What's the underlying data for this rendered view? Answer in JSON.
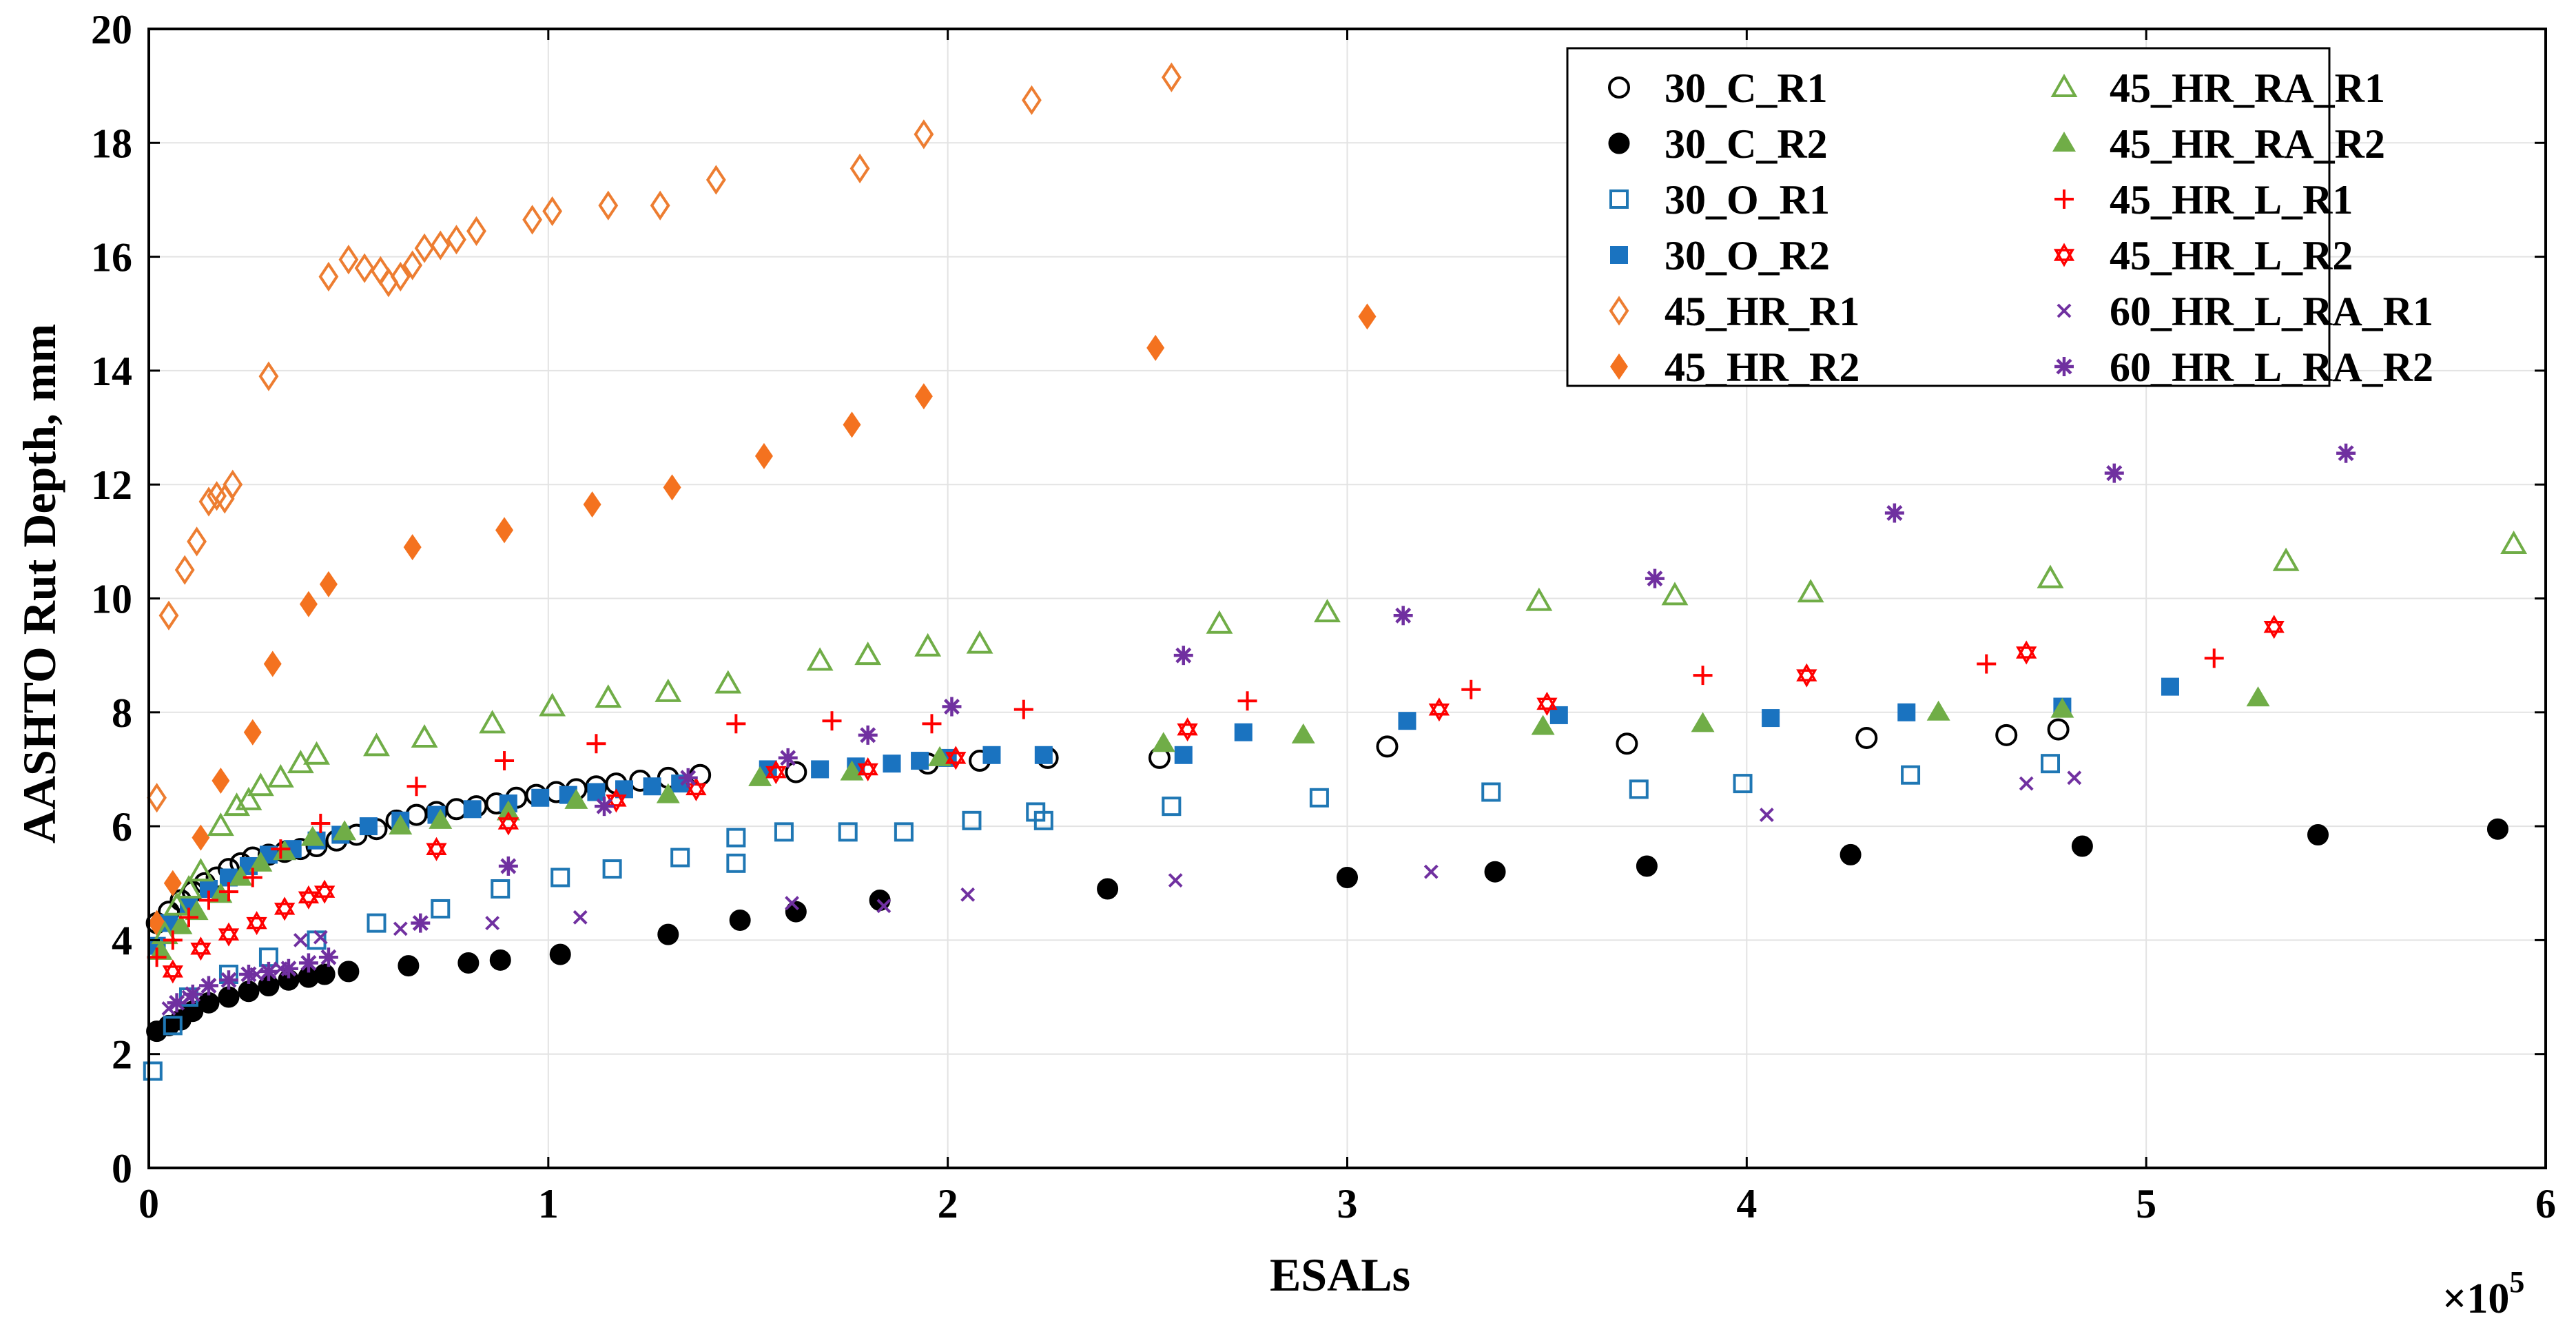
{
  "chart_data": {
    "type": "scatter",
    "title": "",
    "xlabel": "ESALs",
    "ylabel": "AASHTO Rut Depth, mm",
    "x_multiplier_label": "×10",
    "x_multiplier_exponent": "5",
    "xlim": [
      0,
      6
    ],
    "ylim": [
      0,
      20
    ],
    "xticks": [
      0,
      1,
      2,
      3,
      4,
      5,
      6
    ],
    "yticks": [
      0,
      2,
      4,
      6,
      8,
      10,
      12,
      14,
      16,
      18,
      20
    ],
    "xtick_labels": [
      "0",
      "1",
      "2",
      "3",
      "4",
      "5",
      "6"
    ],
    "ytick_labels": [
      "0",
      "2",
      "4",
      "6",
      "8",
      "10",
      "12",
      "14",
      "16",
      "18",
      "20"
    ],
    "grid": true,
    "legend_position": "top-right",
    "series": [
      {
        "name": "30_C_R1",
        "marker": "circle-open",
        "color": "#000000",
        "x": [
          0.02,
          0.05,
          0.08,
          0.11,
          0.14,
          0.17,
          0.2,
          0.23,
          0.26,
          0.3,
          0.34,
          0.38,
          0.42,
          0.47,
          0.52,
          0.57,
          0.62,
          0.67,
          0.72,
          0.77,
          0.82,
          0.87,
          0.92,
          0.97,
          1.02,
          1.07,
          1.12,
          1.17,
          1.23,
          1.3,
          1.38,
          1.62,
          1.95,
          2.08,
          2.25,
          2.53,
          3.1,
          3.7,
          4.3,
          4.65,
          4.78
        ],
        "y": [
          4.3,
          4.5,
          4.7,
          4.85,
          5.0,
          5.1,
          5.25,
          5.35,
          5.45,
          5.5,
          5.55,
          5.6,
          5.65,
          5.75,
          5.85,
          5.95,
          6.1,
          6.2,
          6.25,
          6.3,
          6.35,
          6.4,
          6.5,
          6.55,
          6.6,
          6.65,
          6.7,
          6.75,
          6.8,
          6.85,
          6.9,
          6.95,
          7.1,
          7.15,
          7.2,
          7.2,
          7.4,
          7.45,
          7.55,
          7.6,
          7.7
        ]
      },
      {
        "name": "30_C_R2",
        "marker": "circle-filled",
        "color": "#000000",
        "x": [
          0.02,
          0.05,
          0.08,
          0.11,
          0.15,
          0.2,
          0.25,
          0.3,
          0.35,
          0.4,
          0.44,
          0.5,
          0.65,
          0.8,
          0.88,
          1.03,
          1.3,
          1.48,
          1.62,
          1.83,
          2.4,
          3.0,
          3.37,
          3.75,
          4.26,
          4.84,
          5.43,
          5.88
        ],
        "y": [
          2.4,
          2.5,
          2.6,
          2.75,
          2.9,
          3.0,
          3.1,
          3.2,
          3.3,
          3.35,
          3.4,
          3.45,
          3.55,
          3.6,
          3.65,
          3.75,
          4.1,
          4.35,
          4.5,
          4.7,
          4.9,
          5.1,
          5.2,
          5.3,
          5.5,
          5.65,
          5.85,
          5.95
        ]
      },
      {
        "name": "30_O_R1",
        "marker": "square-open",
        "color": "#1f77b4",
        "x": [
          0.01,
          0.06,
          0.1,
          0.2,
          0.3,
          0.42,
          0.57,
          0.73,
          0.88,
          1.03,
          1.16,
          1.33,
          1.47,
          1.47,
          1.59,
          1.75,
          1.89,
          2.06,
          2.22,
          2.24,
          2.56,
          2.93,
          3.36,
          3.73,
          3.99,
          4.41,
          4.76
        ],
        "y": [
          1.7,
          2.5,
          3.0,
          3.4,
          3.7,
          4.0,
          4.3,
          4.55,
          4.9,
          5.1,
          5.25,
          5.45,
          5.8,
          5.35,
          5.9,
          5.9,
          5.9,
          6.1,
          6.25,
          6.1,
          6.35,
          6.5,
          6.6,
          6.65,
          6.75,
          6.9,
          7.1
        ]
      },
      {
        "name": "30_O_R2",
        "marker": "square-filled",
        "color": "#1a73c0",
        "x": [
          0.02,
          0.05,
          0.1,
          0.15,
          0.2,
          0.25,
          0.3,
          0.36,
          0.42,
          0.48,
          0.55,
          0.63,
          0.72,
          0.81,
          0.9,
          0.98,
          1.05,
          1.12,
          1.19,
          1.26,
          1.33,
          1.55,
          1.68,
          1.77,
          1.86,
          1.93,
          2.0,
          2.11,
          2.24,
          2.59,
          2.74,
          3.15,
          3.53,
          4.06,
          4.4,
          4.79,
          5.06
        ],
        "y": [
          3.9,
          4.3,
          4.6,
          4.9,
          5.1,
          5.3,
          5.5,
          5.6,
          5.75,
          5.85,
          6.0,
          6.1,
          6.2,
          6.3,
          6.4,
          6.5,
          6.55,
          6.6,
          6.65,
          6.7,
          6.75,
          7.0,
          7.0,
          7.05,
          7.1,
          7.15,
          7.2,
          7.25,
          7.25,
          7.25,
          7.65,
          7.85,
          7.95,
          7.9,
          8.0,
          8.1,
          8.45
        ]
      },
      {
        "name": "45_HR_R1",
        "marker": "diamond-open",
        "color": "#ed7d31",
        "x": [
          0.02,
          0.05,
          0.09,
          0.12,
          0.15,
          0.17,
          0.19,
          0.21,
          0.3,
          0.45,
          0.5,
          0.54,
          0.58,
          0.6,
          0.63,
          0.66,
          0.69,
          0.73,
          0.77,
          0.82,
          0.96,
          1.01,
          1.15,
          1.28,
          1.42,
          1.78,
          1.94,
          2.21,
          2.56
        ],
        "y": [
          6.5,
          9.7,
          10.5,
          11.0,
          11.7,
          11.8,
          11.75,
          12.0,
          13.9,
          15.65,
          15.95,
          15.8,
          15.75,
          15.55,
          15.65,
          15.85,
          16.15,
          16.2,
          16.3,
          16.45,
          16.65,
          16.8,
          16.9,
          16.9,
          17.35,
          17.55,
          18.15,
          18.75,
          19.15
        ]
      },
      {
        "name": "45_HR_R2",
        "marker": "diamond-filled",
        "color": "#f4721f",
        "x": [
          0.02,
          0.06,
          0.13,
          0.18,
          0.26,
          0.31,
          0.4,
          0.45,
          0.66,
          0.89,
          1.11,
          1.31,
          1.54,
          1.76,
          1.94,
          2.52,
          3.05
        ],
        "y": [
          4.3,
          5.0,
          5.8,
          6.8,
          7.65,
          8.85,
          9.9,
          10.25,
          10.9,
          11.2,
          11.65,
          11.95,
          12.5,
          13.05,
          13.55,
          14.4,
          14.95
        ]
      },
      {
        "name": "45_HR_RA_R1",
        "marker": "triangle-open",
        "color": "#70ad47",
        "x": [
          0.04,
          0.07,
          0.1,
          0.13,
          0.18,
          0.22,
          0.25,
          0.28,
          0.33,
          0.38,
          0.42,
          0.57,
          0.69,
          0.86,
          1.01,
          1.15,
          1.3,
          1.45,
          1.68,
          1.8,
          1.95,
          2.08,
          2.68,
          2.95,
          3.48,
          3.82,
          4.16,
          4.76,
          5.35,
          5.92
        ],
        "y": [
          4.1,
          4.6,
          4.9,
          5.2,
          6.0,
          6.35,
          6.45,
          6.7,
          6.85,
          7.1,
          7.25,
          7.4,
          7.55,
          7.8,
          8.1,
          8.25,
          8.35,
          8.5,
          8.9,
          9.0,
          9.15,
          9.2,
          9.55,
          9.75,
          9.95,
          10.05,
          10.1,
          10.35,
          10.65,
          10.95
        ]
      },
      {
        "name": "45_HR_RA_R2",
        "marker": "triangle-filled",
        "color": "#70ad47",
        "x": [
          0.03,
          0.08,
          0.12,
          0.18,
          0.23,
          0.28,
          0.34,
          0.41,
          0.49,
          0.63,
          0.73,
          0.9,
          1.07,
          1.3,
          1.53,
          1.76,
          1.98,
          2.54,
          2.89,
          3.49,
          3.89,
          4.48,
          4.79,
          5.28
        ],
        "y": [
          3.8,
          4.25,
          4.5,
          4.8,
          5.1,
          5.35,
          5.55,
          5.8,
          5.9,
          6.0,
          6.1,
          6.25,
          6.45,
          6.55,
          6.85,
          6.95,
          7.2,
          7.45,
          7.6,
          7.75,
          7.8,
          8.0,
          8.05,
          8.25
        ]
      },
      {
        "name": "45_HR_L_R1",
        "marker": "plus",
        "color": "#ff0000",
        "x": [
          0.02,
          0.06,
          0.1,
          0.15,
          0.2,
          0.26,
          0.33,
          0.43,
          0.67,
          0.89,
          1.12,
          1.47,
          1.71,
          1.96,
          2.19,
          2.75,
          3.31,
          3.89,
          4.6,
          5.17
        ],
        "y": [
          3.7,
          4.0,
          4.4,
          4.7,
          4.85,
          5.1,
          5.6,
          6.05,
          6.7,
          7.15,
          7.45,
          7.8,
          7.85,
          7.8,
          8.05,
          8.2,
          8.4,
          8.65,
          8.85,
          8.95
        ]
      },
      {
        "name": "45_HR_L_R2",
        "marker": "hexagram-open",
        "color": "#ff0000",
        "x": [
          0.06,
          0.13,
          0.2,
          0.27,
          0.34,
          0.4,
          0.44,
          0.72,
          0.9,
          1.17,
          1.37,
          1.57,
          1.8,
          2.02,
          2.6,
          3.23,
          3.5,
          4.15,
          4.7,
          5.32
        ],
        "y": [
          3.45,
          3.85,
          4.1,
          4.3,
          4.55,
          4.75,
          4.85,
          5.6,
          6.05,
          6.45,
          6.65,
          6.95,
          7.0,
          7.2,
          7.7,
          8.05,
          8.15,
          8.65,
          9.05,
          9.5
        ]
      },
      {
        "name": "60_HR_L_RA_R1",
        "marker": "x-cross",
        "color": "#7030a0",
        "x": [
          0.05,
          0.1,
          0.15,
          0.2,
          0.27,
          0.33,
          0.38,
          0.43,
          0.63,
          0.86,
          1.08,
          1.61,
          1.84,
          2.05,
          2.57,
          3.21,
          4.05,
          4.7,
          4.82
        ],
        "y": [
          2.8,
          3.0,
          3.2,
          3.3,
          3.4,
          3.5,
          4.0,
          4.05,
          4.2,
          4.3,
          4.4,
          4.65,
          4.6,
          4.8,
          5.05,
          5.2,
          6.2,
          6.75,
          6.85
        ]
      },
      {
        "name": "60_HR_L_RA_R2",
        "marker": "asterisk",
        "color": "#7030a0",
        "x": [
          0.07,
          0.11,
          0.15,
          0.2,
          0.25,
          0.3,
          0.35,
          0.4,
          0.45,
          0.68,
          0.9,
          1.14,
          1.35,
          1.6,
          1.8,
          2.01,
          2.59,
          3.14,
          3.77,
          4.37,
          4.92,
          5.5
        ],
        "y": [
          2.9,
          3.05,
          3.2,
          3.3,
          3.4,
          3.45,
          3.5,
          3.6,
          3.7,
          4.3,
          5.3,
          6.35,
          6.85,
          7.2,
          7.6,
          8.1,
          9.0,
          9.7,
          10.35,
          11.5,
          12.2,
          12.55
        ]
      }
    ]
  }
}
